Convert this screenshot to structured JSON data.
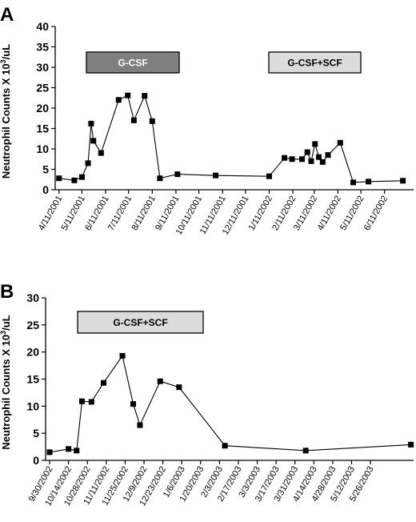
{
  "chart_data": [
    {
      "panel": "A",
      "type": "line",
      "ylabel": "Neutrophil Counts X 10",
      "ylabel_sup": "3",
      "ylabel_unit": "/uL",
      "ylim": [
        0,
        40
      ],
      "yticks": [
        0,
        5,
        10,
        15,
        20,
        25,
        30,
        35,
        40
      ],
      "x_tick_labels": [
        "4/11/2001",
        "5/11/2001",
        "6/11/2001",
        "7/11/2001",
        "8/11/2001",
        "9/11/2001",
        "10/11/2001",
        "11/11/2001",
        "12/11/2001",
        "1/11/2002",
        "2/11/2002",
        "3/11/2002",
        "4/11/2002",
        "5/11/2002",
        "6/11/2002"
      ],
      "x_ticks_day": [
        0,
        30,
        61,
        91,
        122,
        153,
        183,
        214,
        244,
        275,
        306,
        334,
        365,
        395,
        426
      ],
      "x_range_day": [
        -5,
        464
      ],
      "series": [
        {
          "x_day": [
            0,
            20,
            30,
            38,
            42,
            45,
            55,
            78,
            90,
            98,
            112,
            122,
            132,
            155,
            205,
            275,
            295,
            305,
            318,
            325,
            330,
            335,
            340,
            345,
            352,
            368,
            385,
            405,
            450
          ],
          "y": [
            2.8,
            2.3,
            3.1,
            6.5,
            16.2,
            12,
            9,
            22,
            23.1,
            17,
            23,
            16.8,
            2.8,
            3.8,
            3.5,
            3.3,
            7.8,
            7.5,
            7.5,
            9.2,
            7,
            11.2,
            8,
            6.8,
            8.5,
            11.5,
            1.8,
            2,
            2.2
          ]
        }
      ],
      "annotations": [
        {
          "text": "G-CSF",
          "fill": "#7f7f7f",
          "text_color": "#ffffff"
        },
        {
          "text": "G-CSF+SCF",
          "fill": "#dcdcdc",
          "text_color": "#000000"
        }
      ]
    },
    {
      "panel": "B",
      "type": "line",
      "ylabel": "Neutrophil Counts X 10",
      "ylabel_sup": "3",
      "ylabel_unit": "/uL",
      "ylim": [
        0,
        30
      ],
      "yticks": [
        0,
        5,
        10,
        15,
        20,
        25,
        30
      ],
      "x_tick_labels": [
        "9/30/2002",
        "10/14/2002",
        "10/28/2002",
        "11/11/2002",
        "11/25/2002",
        "12/9/2002",
        "12/23/2002",
        "1/6/2003",
        "1/20/2003",
        "2/3/2003",
        "2/17/2003",
        "3/3/2003",
        "3/17/2003",
        "3/31/2003",
        "4/14/2003",
        "4/28/2003",
        "5/12/2003",
        "5/26/2003"
      ],
      "x_ticks_day": [
        0,
        14,
        28,
        42,
        56,
        70,
        84,
        98,
        112,
        126,
        140,
        154,
        168,
        182,
        196,
        210,
        224,
        238
      ],
      "x_range_day": [
        -3,
        270
      ],
      "series": [
        {
          "x_day": [
            0,
            14,
            20,
            24,
            31,
            40,
            54,
            62,
            67,
            82,
            96,
            130,
            190,
            268
          ],
          "y": [
            1.5,
            2.1,
            1.8,
            10.9,
            10.8,
            14.3,
            19.3,
            10.4,
            6.5,
            14.6,
            13.5,
            2.7,
            1.8,
            2.9
          ]
        }
      ],
      "annotations": [
        {
          "text": "G-CSF+SCF",
          "fill": "#dcdcdc",
          "text_color": "#000000"
        }
      ]
    }
  ]
}
